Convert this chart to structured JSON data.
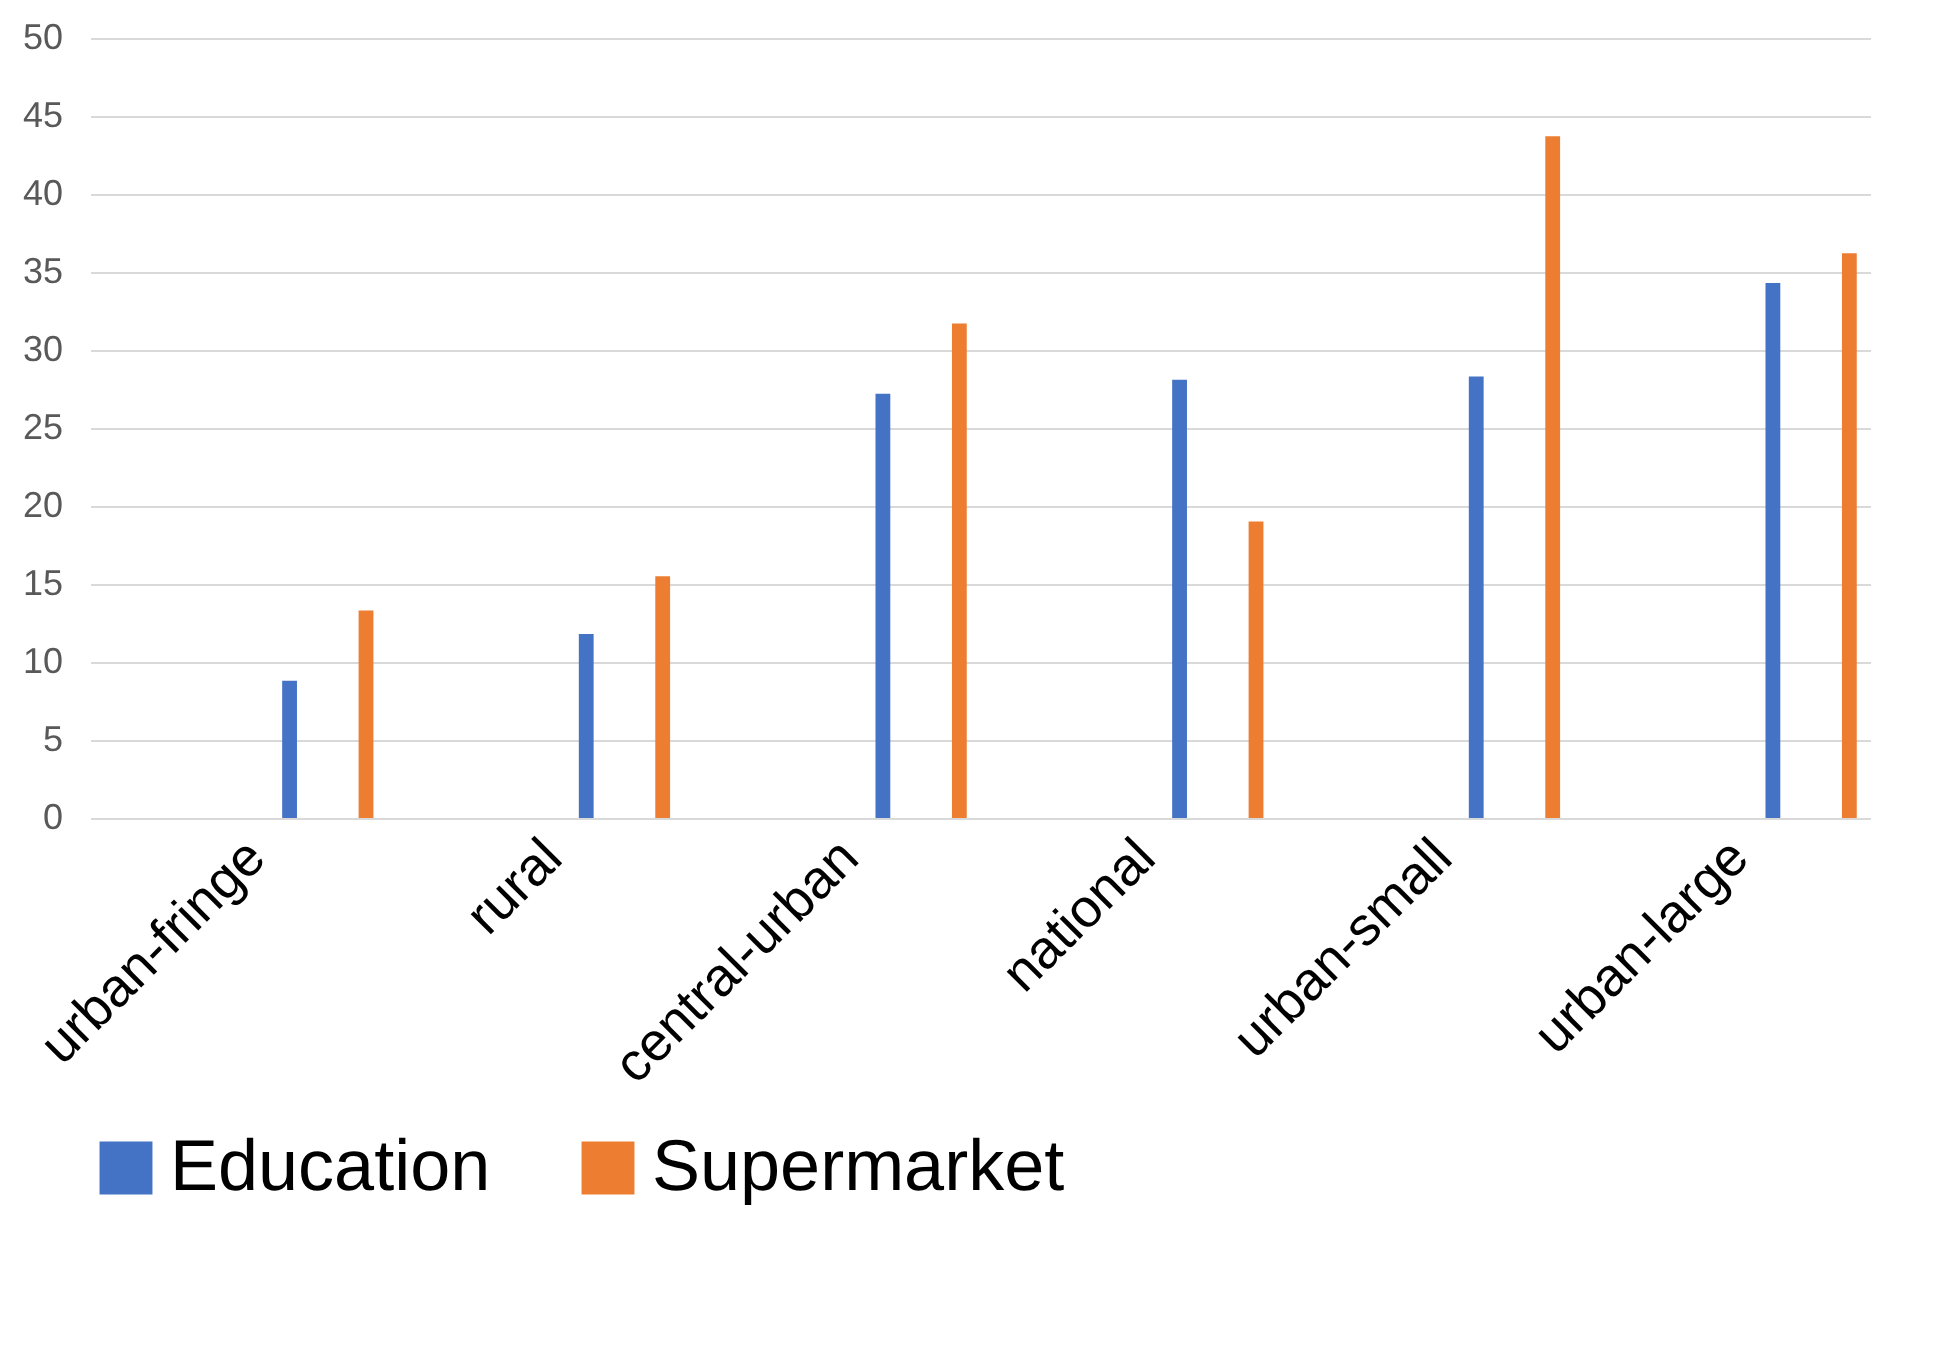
{
  "chart_data": {
    "type": "bar",
    "categories": [
      "urban-fringe",
      "rural",
      "central-urban",
      "national",
      "urban-small",
      "urban-large"
    ],
    "series": [
      {
        "name": "Education",
        "color": "#4472c4",
        "values": [
          8.8,
          11.8,
          27.2,
          28.1,
          28.3,
          34.3
        ]
      },
      {
        "name": "Supermarket",
        "color": "#ed7d31",
        "values": [
          13.3,
          15.5,
          31.7,
          19.0,
          43.7,
          36.2
        ]
      }
    ],
    "ylim": [
      0,
      50
    ],
    "yticks": [
      0,
      5,
      10,
      15,
      20,
      25,
      30,
      35,
      40,
      45,
      50
    ],
    "grid": "y",
    "legend": "bottom"
  }
}
